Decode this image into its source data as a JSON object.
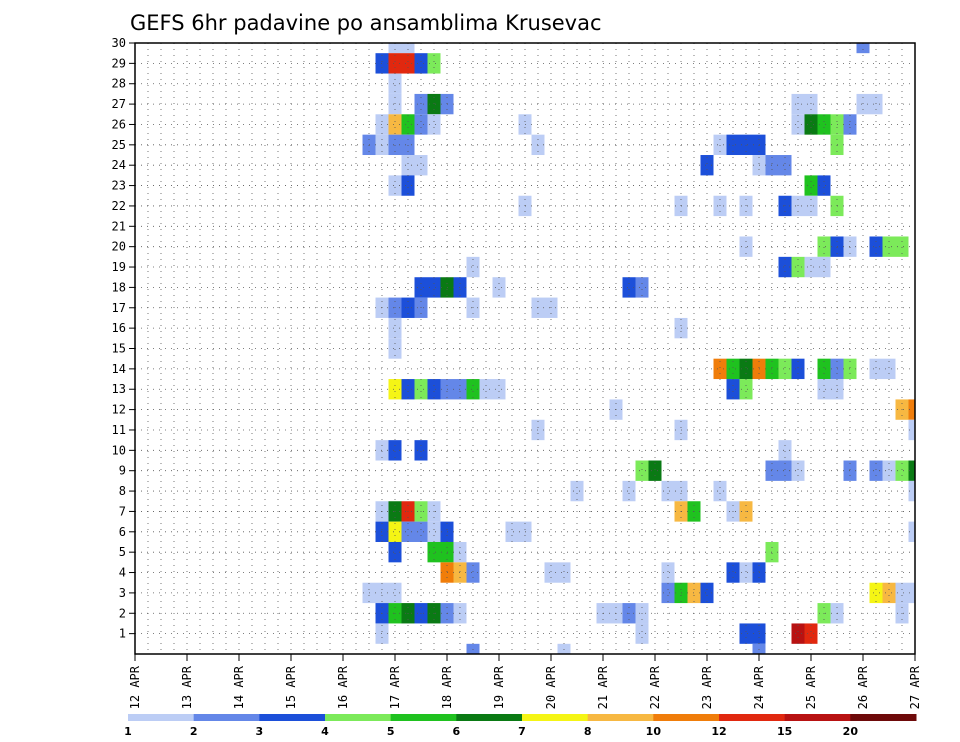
{
  "chart_data": {
    "type": "heatmap",
    "title": "GEFS 6hr padavine po ansamblima Krusevac",
    "xlabel": "",
    "ylabel": "",
    "x_tick_labels": [
      "12 APR",
      "13 APR",
      "14 APR",
      "15 APR",
      "16 APR",
      "17 APR",
      "18 APR",
      "19 APR",
      "20 APR",
      "21 APR",
      "22 APR",
      "23 APR",
      "24 APR",
      "25 APR",
      "26 APR",
      "27 APR"
    ],
    "x_range_days": [
      12,
      27
    ],
    "y_tick_labels": [
      1,
      2,
      3,
      4,
      5,
      6,
      7,
      8,
      9,
      10,
      11,
      12,
      13,
      14,
      15,
      16,
      17,
      18,
      19,
      20,
      21,
      22,
      23,
      24,
      25,
      26,
      27,
      28,
      29,
      30
    ],
    "y_range": [
      0,
      30
    ],
    "grid": true,
    "legend": {
      "placement": "bottom",
      "colors": [
        "#bccdf5",
        "#6487e8",
        "#1c4fd9",
        "#7cea5a",
        "#1fc21f",
        "#0a7a14",
        "#f5f515",
        "#f7b842",
        "#f07d0a",
        "#e1280f",
        "#b81212",
        "#6e0a0a"
      ],
      "labels": [
        "1",
        "2",
        "3",
        "4",
        "5",
        "6",
        "7",
        "8",
        "10",
        "12",
        "15",
        "20"
      ]
    },
    "cells": [
      {
        "day": 17.0,
        "member": 30,
        "level": 1
      },
      {
        "day": 17.25,
        "member": 30,
        "level": 1
      },
      {
        "day": 26.0,
        "member": 30,
        "level": 2
      },
      {
        "day": 16.75,
        "member": 29,
        "level": 3
      },
      {
        "day": 17.0,
        "member": 29,
        "level": 10
      },
      {
        "day": 17.25,
        "member": 29,
        "level": 10
      },
      {
        "day": 17.5,
        "member": 29,
        "level": 3
      },
      {
        "day": 17.75,
        "member": 29,
        "level": 4
      },
      {
        "day": 17.0,
        "member": 28,
        "level": 1
      },
      {
        "day": 17.0,
        "member": 27,
        "level": 1
      },
      {
        "day": 17.5,
        "member": 27,
        "level": 2
      },
      {
        "day": 17.75,
        "member": 27,
        "level": 6
      },
      {
        "day": 18.0,
        "member": 27,
        "level": 2
      },
      {
        "day": 24.75,
        "member": 27,
        "level": 1
      },
      {
        "day": 25.0,
        "member": 27,
        "level": 1
      },
      {
        "day": 26.0,
        "member": 27,
        "level": 1
      },
      {
        "day": 26.25,
        "member": 27,
        "level": 1
      },
      {
        "day": 16.75,
        "member": 26,
        "level": 1
      },
      {
        "day": 17.0,
        "member": 26,
        "level": 8
      },
      {
        "day": 17.25,
        "member": 26,
        "level": 5
      },
      {
        "day": 17.5,
        "member": 26,
        "level": 2
      },
      {
        "day": 17.75,
        "member": 26,
        "level": 1
      },
      {
        "day": 19.5,
        "member": 26,
        "level": 1
      },
      {
        "day": 24.75,
        "member": 26,
        "level": 1
      },
      {
        "day": 25.0,
        "member": 26,
        "level": 6
      },
      {
        "day": 25.25,
        "member": 26,
        "level": 5
      },
      {
        "day": 25.5,
        "member": 26,
        "level": 4
      },
      {
        "day": 25.75,
        "member": 26,
        "level": 2
      },
      {
        "day": 16.5,
        "member": 25,
        "level": 2
      },
      {
        "day": 16.75,
        "member": 25,
        "level": 1
      },
      {
        "day": 17.0,
        "member": 25,
        "level": 2
      },
      {
        "day": 17.25,
        "member": 25,
        "level": 2
      },
      {
        "day": 19.75,
        "member": 25,
        "level": 1
      },
      {
        "day": 23.25,
        "member": 25,
        "level": 1
      },
      {
        "day": 23.5,
        "member": 25,
        "level": 3
      },
      {
        "day": 23.75,
        "member": 25,
        "level": 3
      },
      {
        "day": 24.0,
        "member": 25,
        "level": 3
      },
      {
        "day": 25.5,
        "member": 25,
        "level": 4
      },
      {
        "day": 17.25,
        "member": 24,
        "level": 1
      },
      {
        "day": 17.5,
        "member": 24,
        "level": 1
      },
      {
        "day": 23.0,
        "member": 24,
        "level": 3
      },
      {
        "day": 24.0,
        "member": 24,
        "level": 1
      },
      {
        "day": 24.25,
        "member": 24,
        "level": 2
      },
      {
        "day": 24.5,
        "member": 24,
        "level": 2
      },
      {
        "day": 17.0,
        "member": 23,
        "level": 1
      },
      {
        "day": 17.25,
        "member": 23,
        "level": 3
      },
      {
        "day": 25.0,
        "member": 23,
        "level": 5
      },
      {
        "day": 25.25,
        "member": 23,
        "level": 3
      },
      {
        "day": 19.5,
        "member": 22,
        "level": 1
      },
      {
        "day": 22.5,
        "member": 22,
        "level": 1
      },
      {
        "day": 23.25,
        "member": 22,
        "level": 1
      },
      {
        "day": 23.75,
        "member": 22,
        "level": 1
      },
      {
        "day": 24.5,
        "member": 22,
        "level": 3
      },
      {
        "day": 24.75,
        "member": 22,
        "level": 1
      },
      {
        "day": 25.0,
        "member": 22,
        "level": 1
      },
      {
        "day": 25.5,
        "member": 22,
        "level": 4
      },
      {
        "day": 23.75,
        "member": 20,
        "level": 1
      },
      {
        "day": 25.25,
        "member": 20,
        "level": 4
      },
      {
        "day": 25.5,
        "member": 20,
        "level": 3
      },
      {
        "day": 25.75,
        "member": 20,
        "level": 1
      },
      {
        "day": 26.25,
        "member": 20,
        "level": 3
      },
      {
        "day": 26.5,
        "member": 20,
        "level": 4
      },
      {
        "day": 26.75,
        "member": 20,
        "level": 4
      },
      {
        "day": 18.5,
        "member": 19,
        "level": 1
      },
      {
        "day": 24.5,
        "member": 19,
        "level": 3
      },
      {
        "day": 24.75,
        "member": 19,
        "level": 4
      },
      {
        "day": 25.0,
        "member": 19,
        "level": 1
      },
      {
        "day": 25.25,
        "member": 19,
        "level": 1
      },
      {
        "day": 17.5,
        "member": 18,
        "level": 3
      },
      {
        "day": 17.75,
        "member": 18,
        "level": 3
      },
      {
        "day": 18.0,
        "member": 18,
        "level": 6
      },
      {
        "day": 18.25,
        "member": 18,
        "level": 3
      },
      {
        "day": 19.0,
        "member": 18,
        "level": 1
      },
      {
        "day": 21.5,
        "member": 18,
        "level": 3
      },
      {
        "day": 21.75,
        "member": 18,
        "level": 2
      },
      {
        "day": 16.75,
        "member": 17,
        "level": 1
      },
      {
        "day": 17.0,
        "member": 17,
        "level": 2
      },
      {
        "day": 17.25,
        "member": 17,
        "level": 3
      },
      {
        "day": 17.5,
        "member": 17,
        "level": 2
      },
      {
        "day": 18.5,
        "member": 17,
        "level": 1
      },
      {
        "day": 19.75,
        "member": 17,
        "level": 1
      },
      {
        "day": 20.0,
        "member": 17,
        "level": 1
      },
      {
        "day": 17.0,
        "member": 16,
        "level": 1
      },
      {
        "day": 22.5,
        "member": 16,
        "level": 1
      },
      {
        "day": 17.0,
        "member": 15,
        "level": 1
      },
      {
        "day": 23.25,
        "member": 14,
        "level": 9
      },
      {
        "day": 23.5,
        "member": 14,
        "level": 5
      },
      {
        "day": 23.75,
        "member": 14,
        "level": 6
      },
      {
        "day": 24.0,
        "member": 14,
        "level": 9
      },
      {
        "day": 24.25,
        "member": 14,
        "level": 5
      },
      {
        "day": 24.5,
        "member": 14,
        "level": 4
      },
      {
        "day": 24.75,
        "member": 14,
        "level": 3
      },
      {
        "day": 25.25,
        "member": 14,
        "level": 5
      },
      {
        "day": 25.5,
        "member": 14,
        "level": 2
      },
      {
        "day": 25.75,
        "member": 14,
        "level": 4
      },
      {
        "day": 26.25,
        "member": 14,
        "level": 1
      },
      {
        "day": 26.5,
        "member": 14,
        "level": 1
      },
      {
        "day": 17.0,
        "member": 13,
        "level": 7
      },
      {
        "day": 17.25,
        "member": 13,
        "level": 3
      },
      {
        "day": 17.5,
        "member": 13,
        "level": 4
      },
      {
        "day": 17.75,
        "member": 13,
        "level": 3
      },
      {
        "day": 18.0,
        "member": 13,
        "level": 2
      },
      {
        "day": 18.25,
        "member": 13,
        "level": 2
      },
      {
        "day": 18.5,
        "member": 13,
        "level": 5
      },
      {
        "day": 18.75,
        "member": 13,
        "level": 1
      },
      {
        "day": 19.0,
        "member": 13,
        "level": 1
      },
      {
        "day": 23.5,
        "member": 13,
        "level": 3
      },
      {
        "day": 23.75,
        "member": 13,
        "level": 4
      },
      {
        "day": 25.25,
        "member": 13,
        "level": 1
      },
      {
        "day": 25.5,
        "member": 13,
        "level": 1
      },
      {
        "day": 21.25,
        "member": 12,
        "level": 1
      },
      {
        "day": 26.75,
        "member": 12,
        "level": 8
      },
      {
        "day": 27.0,
        "member": 12,
        "level": 9
      },
      {
        "day": 19.75,
        "member": 11,
        "level": 1
      },
      {
        "day": 22.5,
        "member": 11,
        "level": 1
      },
      {
        "day": 27.0,
        "member": 11,
        "level": 1
      },
      {
        "day": 16.75,
        "member": 10,
        "level": 1
      },
      {
        "day": 17.0,
        "member": 10,
        "level": 3
      },
      {
        "day": 17.5,
        "member": 10,
        "level": 3
      },
      {
        "day": 24.5,
        "member": 10,
        "level": 1
      },
      {
        "day": 21.75,
        "member": 9,
        "level": 4
      },
      {
        "day": 22.0,
        "member": 9,
        "level": 6
      },
      {
        "day": 24.25,
        "member": 9,
        "level": 2
      },
      {
        "day": 24.5,
        "member": 9,
        "level": 2
      },
      {
        "day": 24.75,
        "member": 9,
        "level": 1
      },
      {
        "day": 25.75,
        "member": 9,
        "level": 2
      },
      {
        "day": 26.25,
        "member": 9,
        "level": 2
      },
      {
        "day": 26.5,
        "member": 9,
        "level": 1
      },
      {
        "day": 26.75,
        "member": 9,
        "level": 4
      },
      {
        "day": 27.0,
        "member": 9,
        "level": 6
      },
      {
        "day": 20.5,
        "member": 8,
        "level": 1
      },
      {
        "day": 21.5,
        "member": 8,
        "level": 1
      },
      {
        "day": 22.25,
        "member": 8,
        "level": 1
      },
      {
        "day": 22.5,
        "member": 8,
        "level": 1
      },
      {
        "day": 23.25,
        "member": 8,
        "level": 1
      },
      {
        "day": 27.0,
        "member": 8,
        "level": 1
      },
      {
        "day": 16.75,
        "member": 7,
        "level": 1
      },
      {
        "day": 17.0,
        "member": 7,
        "level": 6
      },
      {
        "day": 17.25,
        "member": 7,
        "level": 10
      },
      {
        "day": 17.5,
        "member": 7,
        "level": 4
      },
      {
        "day": 17.75,
        "member": 7,
        "level": 1
      },
      {
        "day": 22.5,
        "member": 7,
        "level": 8
      },
      {
        "day": 22.75,
        "member": 7,
        "level": 5
      },
      {
        "day": 23.5,
        "member": 7,
        "level": 1
      },
      {
        "day": 23.75,
        "member": 7,
        "level": 8
      },
      {
        "day": 16.75,
        "member": 6,
        "level": 3
      },
      {
        "day": 17.0,
        "member": 6,
        "level": 7
      },
      {
        "day": 17.25,
        "member": 6,
        "level": 2
      },
      {
        "day": 17.5,
        "member": 6,
        "level": 2
      },
      {
        "day": 17.75,
        "member": 6,
        "level": 1
      },
      {
        "day": 18.0,
        "member": 6,
        "level": 3
      },
      {
        "day": 19.25,
        "member": 6,
        "level": 1
      },
      {
        "day": 19.5,
        "member": 6,
        "level": 1
      },
      {
        "day": 27.0,
        "member": 6,
        "level": 1
      },
      {
        "day": 17.0,
        "member": 5,
        "level": 3
      },
      {
        "day": 17.75,
        "member": 5,
        "level": 5
      },
      {
        "day": 18.0,
        "member": 5,
        "level": 5
      },
      {
        "day": 18.25,
        "member": 5,
        "level": 1
      },
      {
        "day": 24.25,
        "member": 5,
        "level": 4
      },
      {
        "day": 18.0,
        "member": 4,
        "level": 9
      },
      {
        "day": 18.25,
        "member": 4,
        "level": 8
      },
      {
        "day": 18.5,
        "member": 4,
        "level": 2
      },
      {
        "day": 20.0,
        "member": 4,
        "level": 1
      },
      {
        "day": 20.25,
        "member": 4,
        "level": 1
      },
      {
        "day": 22.25,
        "member": 4,
        "level": 1
      },
      {
        "day": 23.5,
        "member": 4,
        "level": 3
      },
      {
        "day": 23.75,
        "member": 4,
        "level": 1
      },
      {
        "day": 24.0,
        "member": 4,
        "level": 3
      },
      {
        "day": 16.5,
        "member": 3,
        "level": 1
      },
      {
        "day": 16.75,
        "member": 3,
        "level": 1
      },
      {
        "day": 17.0,
        "member": 3,
        "level": 1
      },
      {
        "day": 22.25,
        "member": 3,
        "level": 2
      },
      {
        "day": 22.5,
        "member": 3,
        "level": 5
      },
      {
        "day": 22.75,
        "member": 3,
        "level": 8
      },
      {
        "day": 23.0,
        "member": 3,
        "level": 3
      },
      {
        "day": 26.25,
        "member": 3,
        "level": 7
      },
      {
        "day": 26.5,
        "member": 3,
        "level": 8
      },
      {
        "day": 26.75,
        "member": 3,
        "level": 1
      },
      {
        "day": 27.0,
        "member": 3,
        "level": 1
      },
      {
        "day": 16.75,
        "member": 2,
        "level": 3
      },
      {
        "day": 17.0,
        "member": 2,
        "level": 5
      },
      {
        "day": 17.25,
        "member": 2,
        "level": 6
      },
      {
        "day": 17.5,
        "member": 2,
        "level": 3
      },
      {
        "day": 17.75,
        "member": 2,
        "level": 6
      },
      {
        "day": 18.0,
        "member": 2,
        "level": 2
      },
      {
        "day": 18.25,
        "member": 2,
        "level": 1
      },
      {
        "day": 21.0,
        "member": 2,
        "level": 1
      },
      {
        "day": 21.25,
        "member": 2,
        "level": 1
      },
      {
        "day": 21.5,
        "member": 2,
        "level": 2
      },
      {
        "day": 21.75,
        "member": 2,
        "level": 1
      },
      {
        "day": 25.25,
        "member": 2,
        "level": 4
      },
      {
        "day": 25.5,
        "member": 2,
        "level": 1
      },
      {
        "day": 26.75,
        "member": 2,
        "level": 1
      },
      {
        "day": 16.75,
        "member": 1,
        "level": 1
      },
      {
        "day": 21.75,
        "member": 1,
        "level": 1
      },
      {
        "day": 23.75,
        "member": 1,
        "level": 3
      },
      {
        "day": 24.0,
        "member": 1,
        "level": 3
      },
      {
        "day": 24.75,
        "member": 1,
        "level": 11
      },
      {
        "day": 25.0,
        "member": 1,
        "level": 10
      },
      {
        "day": 18.5,
        "member": 0,
        "level": 2
      },
      {
        "day": 20.25,
        "member": 0,
        "level": 1
      },
      {
        "day": 24.0,
        "member": 0,
        "level": 2
      }
    ]
  }
}
